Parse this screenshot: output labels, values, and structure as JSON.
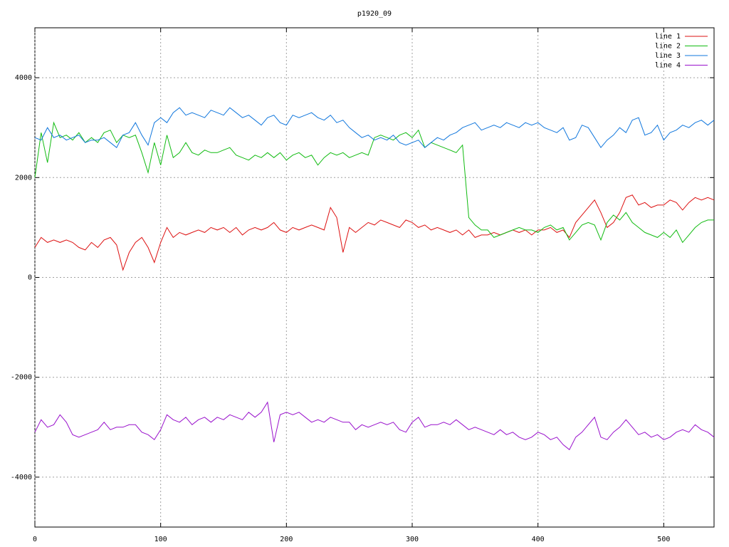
{
  "chart_data": {
    "type": "line",
    "title": "p1920_09",
    "x": [
      0,
      5,
      10,
      15,
      20,
      25,
      30,
      35,
      40,
      45,
      50,
      55,
      60,
      65,
      70,
      75,
      80,
      85,
      90,
      95,
      100,
      105,
      110,
      115,
      120,
      125,
      130,
      135,
      140,
      145,
      150,
      155,
      160,
      165,
      170,
      175,
      180,
      185,
      190,
      195,
      200,
      205,
      210,
      215,
      220,
      225,
      230,
      235,
      240,
      245,
      250,
      255,
      260,
      265,
      270,
      275,
      280,
      285,
      290,
      295,
      300,
      305,
      310,
      315,
      320,
      325,
      330,
      335,
      340,
      345,
      350,
      355,
      360,
      365,
      370,
      375,
      380,
      385,
      390,
      395,
      400,
      405,
      410,
      415,
      420,
      425,
      430,
      435,
      440,
      445,
      450,
      455,
      460,
      465,
      470,
      475,
      480,
      485,
      490,
      495,
      500,
      505,
      510,
      515,
      520,
      525,
      530,
      535,
      540
    ],
    "series": [
      {
        "name": "line 1",
        "color": "#dd1111",
        "values": [
          600,
          800,
          700,
          750,
          700,
          750,
          700,
          600,
          550,
          700,
          600,
          750,
          800,
          650,
          150,
          500,
          700,
          800,
          600,
          300,
          700,
          1000,
          800,
          900,
          850,
          900,
          950,
          900,
          1000,
          950,
          1000,
          900,
          1000,
          850,
          950,
          1000,
          950,
          1000,
          1100,
          950,
          900,
          1000,
          950,
          1000,
          1050,
          1000,
          950,
          1400,
          1200,
          500,
          1000,
          900,
          1000,
          1100,
          1050,
          1150,
          1100,
          1050,
          1000,
          1150,
          1100,
          1000,
          1050,
          950,
          1000,
          950,
          900,
          950,
          850,
          950,
          800,
          850,
          850,
          900,
          850,
          900,
          950,
          900,
          950,
          850,
          950,
          950,
          1000,
          900,
          950,
          800,
          1100,
          1250,
          1400,
          1550,
          1300,
          1000,
          1100,
          1300,
          1600,
          1650,
          1450,
          1500,
          1400,
          1450,
          1450,
          1550,
          1500,
          1350,
          1500,
          1600,
          1550,
          1600,
          1550
        ]
      },
      {
        "name": "line 2",
        "color": "#11bb11",
        "values": [
          2000,
          2900,
          2300,
          3100,
          2800,
          2850,
          2750,
          2900,
          2700,
          2800,
          2700,
          2900,
          2950,
          2700,
          2850,
          2800,
          2850,
          2500,
          2100,
          2700,
          2250,
          2850,
          2400,
          2500,
          2700,
          2500,
          2450,
          2550,
          2500,
          2500,
          2550,
          2600,
          2450,
          2400,
          2350,
          2450,
          2400,
          2500,
          2400,
          2500,
          2350,
          2450,
          2500,
          2400,
          2450,
          2250,
          2400,
          2500,
          2450,
          2500,
          2400,
          2450,
          2500,
          2450,
          2800,
          2850,
          2800,
          2750,
          2850,
          2900,
          2800,
          2950,
          2600,
          2700,
          2650,
          2600,
          2550,
          2500,
          2650,
          1200,
          1050,
          950,
          950,
          800,
          850,
          900,
          950,
          1000,
          950,
          950,
          900,
          1000,
          1050,
          950,
          1000,
          750,
          900,
          1050,
          1100,
          1050,
          750,
          1100,
          1250,
          1150,
          1300,
          1100,
          1000,
          900,
          850,
          800,
          900,
          800,
          950,
          700,
          850,
          1000,
          1100,
          1150,
          1150
        ]
      },
      {
        "name": "line 3",
        "color": "#1177dd",
        "values": [
          2800,
          2750,
          3000,
          2800,
          2850,
          2750,
          2800,
          2850,
          2700,
          2750,
          2750,
          2800,
          2700,
          2600,
          2850,
          2900,
          3100,
          2850,
          2650,
          3100,
          3200,
          3100,
          3300,
          3400,
          3250,
          3300,
          3250,
          3200,
          3350,
          3300,
          3250,
          3400,
          3300,
          3200,
          3250,
          3150,
          3050,
          3200,
          3250,
          3100,
          3050,
          3250,
          3200,
          3250,
          3300,
          3200,
          3150,
          3250,
          3100,
          3150,
          3000,
          2900,
          2800,
          2850,
          2750,
          2800,
          2750,
          2850,
          2700,
          2650,
          2700,
          2750,
          2600,
          2700,
          2800,
          2750,
          2850,
          2900,
          3000,
          3050,
          3100,
          2950,
          3000,
          3050,
          3000,
          3100,
          3050,
          3000,
          3100,
          3050,
          3100,
          3000,
          2950,
          2900,
          3000,
          2750,
          2800,
          3050,
          3000,
          2800,
          2600,
          2750,
          2850,
          3000,
          2900,
          3150,
          3200,
          2850,
          2900,
          3050,
          2750,
          2900,
          2950,
          3050,
          3000,
          3100,
          3150,
          3050,
          3150
        ]
      },
      {
        "name": "line 4",
        "color": "#9911cc",
        "values": [
          -3100,
          -2850,
          -3000,
          -2950,
          -2750,
          -2900,
          -3150,
          -3200,
          -3150,
          -3100,
          -3050,
          -2900,
          -3050,
          -3000,
          -3000,
          -2950,
          -2950,
          -3100,
          -3150,
          -3250,
          -3050,
          -2750,
          -2850,
          -2900,
          -2800,
          -2950,
          -2850,
          -2800,
          -2900,
          -2800,
          -2850,
          -2750,
          -2800,
          -2850,
          -2700,
          -2800,
          -2700,
          -2500,
          -3300,
          -2750,
          -2700,
          -2750,
          -2700,
          -2800,
          -2900,
          -2850,
          -2900,
          -2800,
          -2850,
          -2900,
          -2900,
          -3050,
          -2950,
          -3000,
          -2950,
          -2900,
          -2950,
          -2900,
          -3050,
          -3100,
          -2900,
          -2800,
          -3000,
          -2950,
          -2950,
          -2900,
          -2950,
          -2850,
          -2950,
          -3050,
          -3000,
          -3050,
          -3100,
          -3150,
          -3050,
          -3150,
          -3100,
          -3200,
          -3250,
          -3200,
          -3100,
          -3150,
          -3250,
          -3200,
          -3350,
          -3450,
          -3200,
          -3100,
          -2950,
          -2800,
          -3200,
          -3250,
          -3100,
          -3000,
          -2850,
          -3000,
          -3150,
          -3100,
          -3200,
          -3150,
          -3250,
          -3200,
          -3100,
          -3050,
          -3100,
          -2950,
          -3050,
          -3100,
          -3200
        ]
      }
    ],
    "xlim": [
      0,
      540
    ],
    "xticks": [
      0,
      100,
      200,
      300,
      400,
      500
    ],
    "ylim": [
      -5000,
      5000
    ],
    "yticks": [
      -4000,
      -2000,
      0,
      2000,
      4000
    ],
    "grid": true,
    "legend": "top-right"
  }
}
